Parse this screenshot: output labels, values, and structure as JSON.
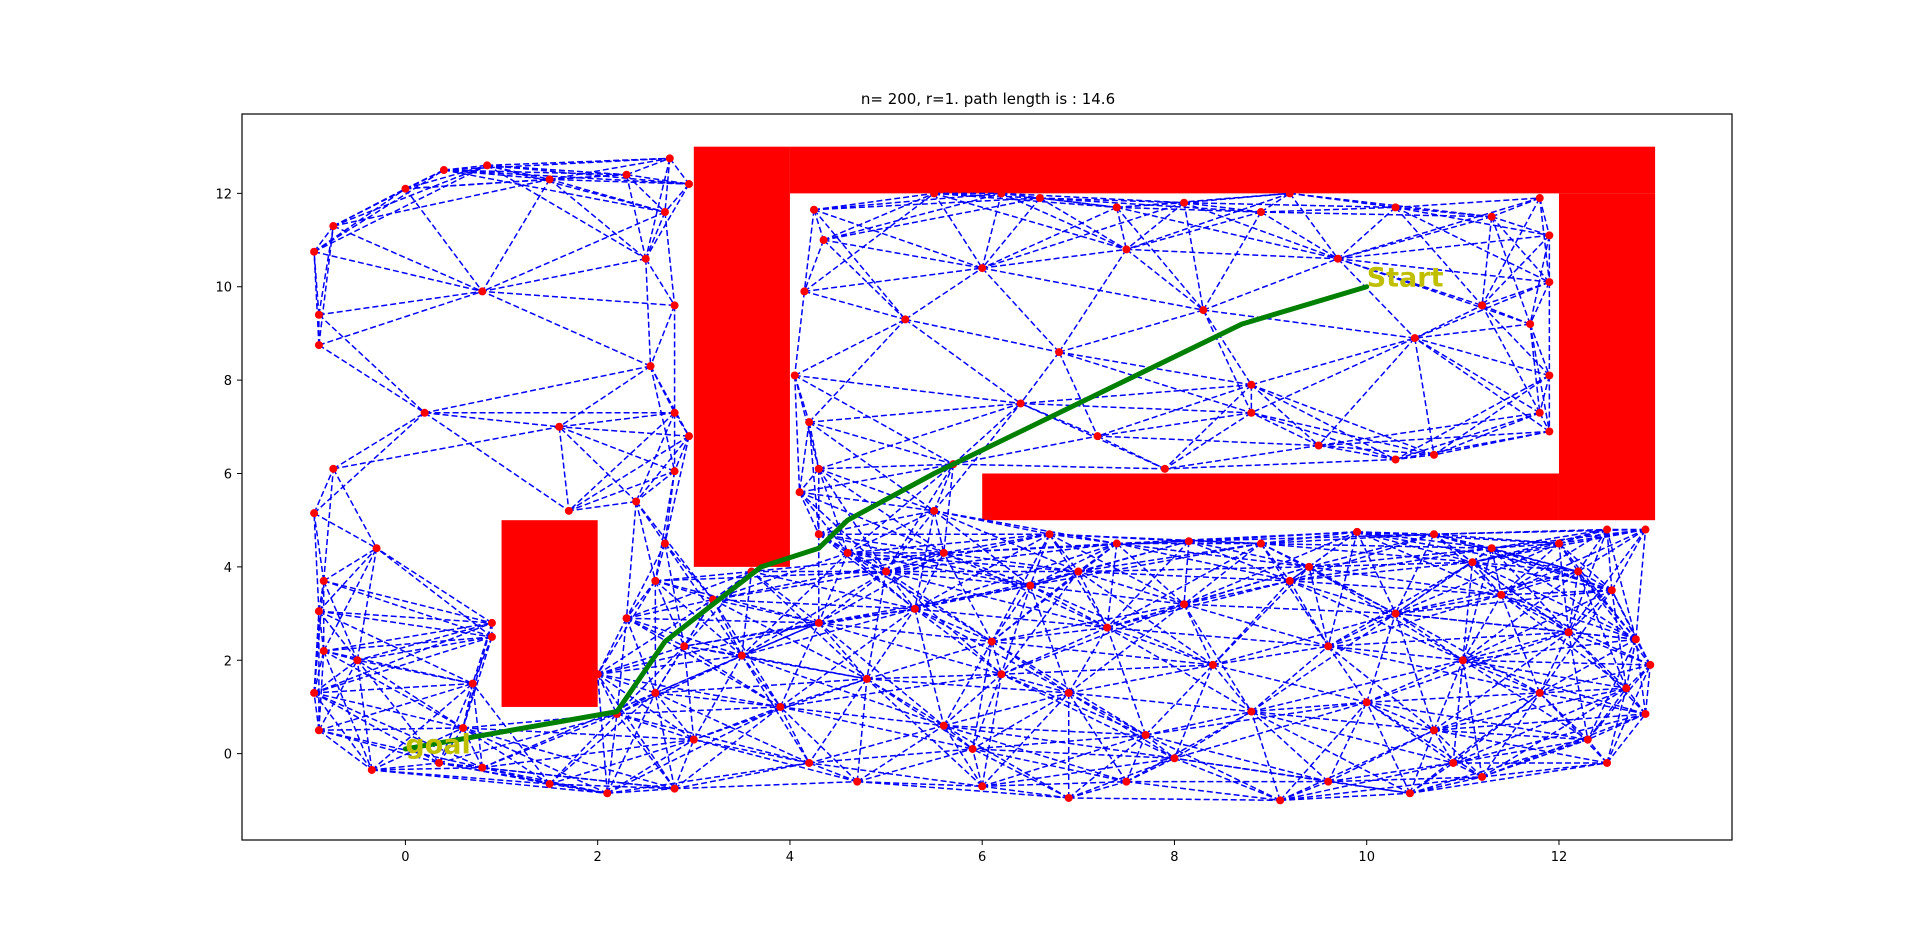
{
  "chart_data": {
    "type": "scatter",
    "title": "n= 200, r=1. path length is : 14.6",
    "xlabel": "",
    "ylabel": "",
    "xlim": [
      -1.7,
      13.8
    ],
    "ylim": [
      -1.85,
      13.7
    ],
    "xticks": [
      0,
      2,
      4,
      6,
      8,
      10,
      12
    ],
    "yticks": [
      0,
      2,
      4,
      6,
      8,
      10,
      12
    ],
    "grid": false,
    "colors": {
      "obstacle": "#ff0000",
      "edge": "#0000ff",
      "node": "#ff0000",
      "path": "#008000",
      "annotation": "#bfbf00"
    },
    "obstacles": [
      {
        "x": 3,
        "y": 4,
        "w": 1,
        "h": 9
      },
      {
        "x": 4,
        "y": 12,
        "w": 9,
        "h": 1
      },
      {
        "x": 12,
        "y": 5,
        "w": 1,
        "h": 7
      },
      {
        "x": 6,
        "y": 5,
        "w": 6,
        "h": 1
      },
      {
        "x": 1,
        "y": 1,
        "w": 1,
        "h": 4
      }
    ],
    "nodes": [
      [
        -0.9,
        0.5
      ],
      [
        -0.95,
        1.3
      ],
      [
        -0.85,
        2.2
      ],
      [
        -0.9,
        3.05
      ],
      [
        -0.85,
        3.7
      ],
      [
        -0.95,
        5.15
      ],
      [
        -0.75,
        6.1
      ],
      [
        -0.9,
        8.75
      ],
      [
        -0.9,
        9.4
      ],
      [
        -0.95,
        10.75
      ],
      [
        -0.75,
        11.3
      ],
      [
        -0.35,
        -0.35
      ],
      [
        0.35,
        -0.2
      ],
      [
        0.8,
        -0.3
      ],
      [
        1.5,
        -0.65
      ],
      [
        2.1,
        -0.85
      ],
      [
        2.8,
        -0.75
      ],
      [
        4.7,
        -0.6
      ],
      [
        6.0,
        -0.7
      ],
      [
        6.9,
        -0.95
      ],
      [
        7.5,
        -0.6
      ],
      [
        9.1,
        -1.0
      ],
      [
        9.6,
        -0.6
      ],
      [
        10.45,
        -0.85
      ],
      [
        11.2,
        -0.5
      ],
      [
        12.5,
        -0.2
      ],
      [
        12.9,
        0.85
      ],
      [
        12.95,
        1.9
      ],
      [
        12.8,
        2.45
      ],
      [
        12.55,
        3.5
      ],
      [
        12.9,
        4.8
      ],
      [
        0.0,
        12.1
      ],
      [
        0.4,
        12.5
      ],
      [
        0.85,
        12.6
      ],
      [
        1.5,
        12.3
      ],
      [
        2.3,
        12.4
      ],
      [
        2.75,
        12.75
      ],
      [
        2.95,
        12.2
      ],
      [
        2.7,
        11.6
      ],
      [
        2.5,
        10.6
      ],
      [
        2.8,
        9.6
      ],
      [
        2.55,
        8.3
      ],
      [
        2.8,
        7.3
      ],
      [
        2.95,
        6.8
      ],
      [
        2.8,
        6.05
      ],
      [
        2.4,
        5.4
      ],
      [
        2.7,
        4.5
      ],
      [
        2.6,
        3.7
      ],
      [
        2.3,
        2.9
      ],
      [
        0.9,
        2.8
      ],
      [
        0.9,
        2.5
      ],
      [
        0.7,
        1.5
      ],
      [
        0.6,
        0.55
      ],
      [
        -0.5,
        2.0
      ],
      [
        -0.3,
        4.4
      ],
      [
        0.2,
        7.3
      ],
      [
        0.8,
        9.9
      ],
      [
        1.6,
        7.0
      ],
      [
        1.3,
        3.9
      ],
      [
        2.0,
        1.7
      ],
      [
        2.2,
        0.85
      ],
      [
        1.7,
        5.2
      ],
      [
        4.25,
        11.65
      ],
      [
        4.35,
        11.0
      ],
      [
        4.15,
        9.9
      ],
      [
        4.05,
        8.1
      ],
      [
        4.2,
        7.1
      ],
      [
        4.3,
        6.1
      ],
      [
        4.1,
        5.6
      ],
      [
        4.3,
        4.7
      ],
      [
        4.6,
        4.3
      ],
      [
        5.0,
        3.9
      ],
      [
        5.5,
        5.2
      ],
      [
        5.7,
        6.2
      ],
      [
        5.5,
        12.0
      ],
      [
        6.2,
        12.0
      ],
      [
        6.6,
        11.9
      ],
      [
        7.4,
        11.7
      ],
      [
        8.1,
        11.8
      ],
      [
        8.9,
        11.6
      ],
      [
        9.2,
        12.0
      ],
      [
        10.3,
        11.7
      ],
      [
        11.3,
        11.5
      ],
      [
        11.8,
        11.9
      ],
      [
        11.9,
        11.1
      ],
      [
        11.9,
        10.1
      ],
      [
        11.7,
        9.2
      ],
      [
        11.9,
        8.1
      ],
      [
        11.8,
        7.3
      ],
      [
        11.9,
        6.9
      ],
      [
        5.2,
        9.3
      ],
      [
        6.0,
        10.4
      ],
      [
        6.8,
        8.6
      ],
      [
        7.5,
        10.8
      ],
      [
        8.3,
        9.5
      ],
      [
        8.8,
        7.9
      ],
      [
        9.7,
        10.6
      ],
      [
        10.5,
        8.9
      ],
      [
        11.2,
        9.6
      ],
      [
        10.7,
        6.4
      ],
      [
        10.3,
        6.3
      ],
      [
        9.5,
        6.6
      ],
      [
        8.8,
        7.3
      ],
      [
        7.2,
        6.8
      ],
      [
        6.4,
        7.5
      ],
      [
        7.9,
        6.1
      ],
      [
        6.7,
        4.7
      ],
      [
        7.4,
        4.5
      ],
      [
        8.15,
        4.55
      ],
      [
        8.9,
        4.5
      ],
      [
        9.9,
        4.75
      ],
      [
        10.7,
        4.7
      ],
      [
        11.3,
        4.4
      ],
      [
        12.0,
        4.5
      ],
      [
        12.5,
        4.8
      ],
      [
        3.2,
        3.3
      ],
      [
        3.5,
        2.1
      ],
      [
        3.9,
        1.0
      ],
      [
        4.3,
        2.8
      ],
      [
        4.8,
        1.6
      ],
      [
        5.3,
        3.1
      ],
      [
        5.6,
        0.6
      ],
      [
        6.1,
        2.4
      ],
      [
        6.5,
        3.6
      ],
      [
        6.9,
        1.3
      ],
      [
        7.3,
        2.7
      ],
      [
        7.7,
        0.4
      ],
      [
        8.1,
        3.2
      ],
      [
        8.4,
        1.9
      ],
      [
        8.8,
        0.9
      ],
      [
        9.2,
        3.7
      ],
      [
        9.6,
        2.3
      ],
      [
        10.0,
        1.1
      ],
      [
        10.3,
        3.0
      ],
      [
        10.7,
        0.5
      ],
      [
        11.0,
        2.0
      ],
      [
        11.4,
        3.4
      ],
      [
        11.8,
        1.3
      ],
      [
        12.1,
        2.6
      ],
      [
        12.3,
        0.3
      ],
      [
        4.2,
        -0.2
      ],
      [
        5.9,
        0.1
      ],
      [
        8.0,
        -0.1
      ],
      [
        10.9,
        -0.2
      ],
      [
        3.0,
        0.3
      ],
      [
        12.7,
        1.4
      ],
      [
        7.0,
        3.9
      ],
      [
        9.4,
        4.0
      ],
      [
        5.6,
        4.3
      ],
      [
        3.6,
        3.9
      ],
      [
        2.9,
        2.3
      ],
      [
        2.6,
        1.3
      ],
      [
        12.2,
        3.9
      ],
      [
        11.1,
        4.1
      ],
      [
        6.2,
        1.7
      ]
    ],
    "path": [
      [
        10.0,
        10.0
      ],
      [
        8.7,
        9.2
      ],
      [
        7.5,
        8.0
      ],
      [
        5.5,
        6.0
      ],
      [
        4.6,
        5.0
      ],
      [
        4.3,
        4.4
      ],
      [
        3.7,
        4.0
      ],
      [
        2.7,
        2.4
      ],
      [
        2.2,
        0.9
      ],
      [
        0.0,
        0.1
      ]
    ],
    "annotations": [
      {
        "text": "Start",
        "x": 10.0,
        "y": 10.0
      },
      {
        "text": "goal",
        "x": 0.0,
        "y": 0.0
      }
    ]
  }
}
